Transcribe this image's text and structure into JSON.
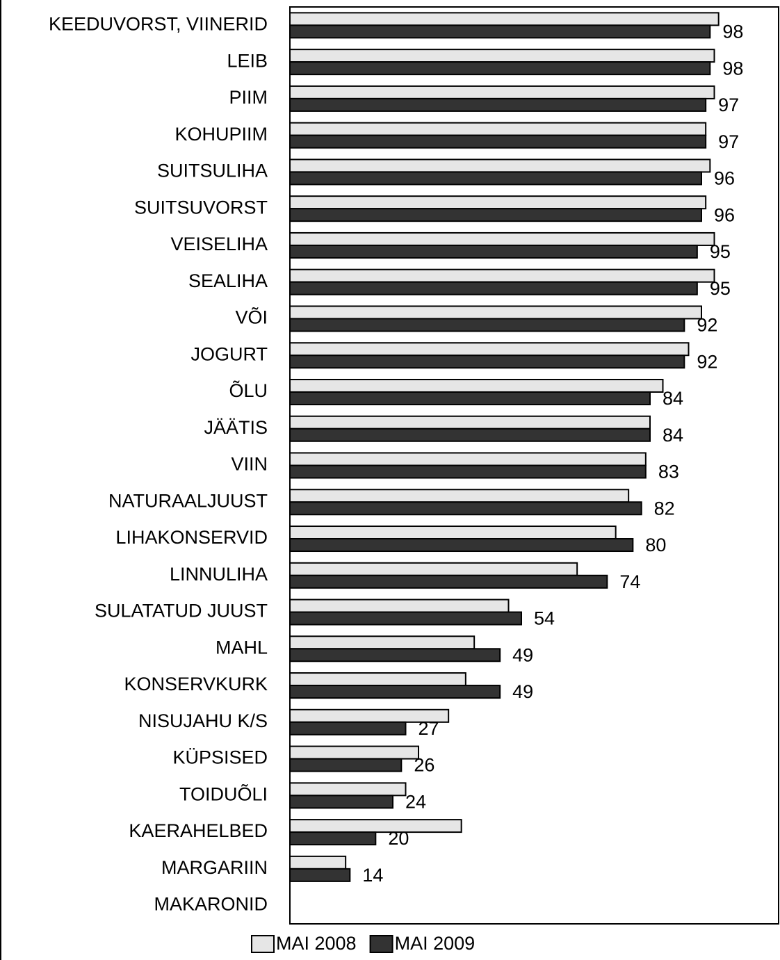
{
  "chart_data": {
    "type": "bar",
    "orientation": "horizontal",
    "categories": [
      "KEEDUVORST, VIINERID",
      "LEIB",
      "PIIM",
      "KOHUPIIM",
      "SUITSULIHA",
      "SUITSUVORST",
      "VEISELIHA",
      "SEALIHA",
      "VÕI",
      "JOGURT",
      "ÕLU",
      "JÄÄTIS",
      "VIIN",
      "NATURAALJUUST",
      "LIHAKONSERVID",
      "LINNULIHA",
      "SULATATUD JUUST",
      "MAHL",
      "KONSERVKURK",
      "NISUJAHU K/S",
      "KÜPSISED",
      "TOIDUÕLI",
      "KAERAHELBED",
      "MARGARIIN",
      "MAKARONID"
    ],
    "series": [
      {
        "name": "MAI 2008",
        "color": "#e6e6e6",
        "values": [
          100,
          99,
          99,
          97,
          98,
          97,
          99,
          99,
          96,
          93,
          87,
          84,
          83,
          79,
          76,
          67,
          51,
          43,
          41,
          37,
          30,
          27,
          40,
          13,
          null
        ]
      },
      {
        "name": "MAI 2009",
        "color": "#333333",
        "values": [
          98,
          98,
          97,
          97,
          96,
          96,
          95,
          95,
          92,
          92,
          84,
          84,
          83,
          82,
          80,
          74,
          54,
          49,
          49,
          27,
          26,
          24,
          20,
          14,
          null
        ],
        "show_labels": true
      }
    ],
    "xlim": [
      0,
      114
    ],
    "legend": "bottom"
  }
}
